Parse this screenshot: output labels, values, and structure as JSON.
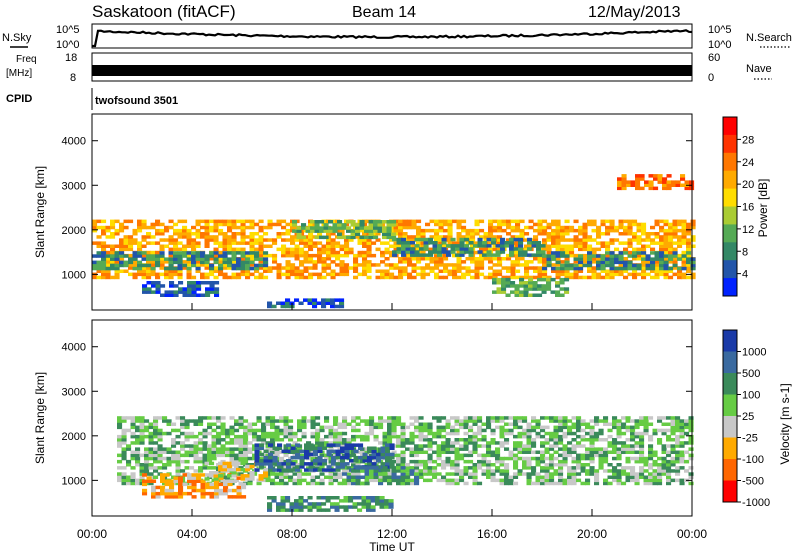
{
  "header": {
    "station": "Saskatoon (fitACF)",
    "beam": "Beam 14",
    "date": "12/May/2013"
  },
  "noise_panel": {
    "left_label": "N.Sky",
    "left_ticks": [
      "10^5",
      "10^0"
    ],
    "right_ticks": [
      "10^5",
      "10^0"
    ],
    "right_label": "N.Search"
  },
  "freq_panel": {
    "left_label_1": "Freq",
    "left_label_2": "[MHz]",
    "left_ticks": [
      "18",
      "8"
    ],
    "right_ticks": [
      "60",
      "0"
    ],
    "right_label": "Nave"
  },
  "cpid_panel": {
    "label": "CPID",
    "program": "twofsound 3501"
  },
  "power_colorbar": {
    "label": "Power [dB]",
    "ticks": [
      "28",
      "24",
      "20",
      "16",
      "12",
      "8",
      "4"
    ],
    "colors": [
      "#ff0000",
      "#ff3300",
      "#ff7700",
      "#ffaa00",
      "#ffdd00",
      "#aacc33",
      "#55aa55",
      "#338866",
      "#2255aa",
      "#0022ff"
    ]
  },
  "velocity_colorbar": {
    "label": "Velocity [m s-1]",
    "ticks": [
      "1000",
      "500",
      "100",
      "25",
      "-25",
      "-100",
      "-500",
      "-1000"
    ],
    "colors": [
      "#1a3aa8",
      "#3a6aa0",
      "#3a8a5a",
      "#66cc44",
      "#c8c8c8",
      "#ffaa00",
      "#ff6600",
      "#ff0000"
    ]
  },
  "chart_data": [
    {
      "type": "heatmap",
      "name": "power",
      "ylabel": "Slant Range [km]",
      "xlabel": "",
      "yticks": [
        "4000",
        "3000",
        "2000",
        "1000"
      ],
      "ylim": [
        200,
        4600
      ],
      "xlim": [
        0,
        24
      ],
      "colorbar": "Power [dB]",
      "bands": [
        {
          "t0": 0.0,
          "t1": 24.0,
          "r0": 900,
          "r1": 2200,
          "level": 6
        },
        {
          "t0": 0.0,
          "t1": 7.0,
          "r0": 1100,
          "r1": 1500,
          "level": 2
        },
        {
          "t0": 2.0,
          "t1": 5.0,
          "r0": 500,
          "r1": 800,
          "level": 1
        },
        {
          "t0": 7.0,
          "t1": 10.0,
          "r0": 250,
          "r1": 400,
          "level": 1
        },
        {
          "t0": 8.0,
          "t1": 12.0,
          "r0": 1800,
          "r1": 2200,
          "level": 3
        },
        {
          "t0": 12.0,
          "t1": 18.0,
          "r0": 1400,
          "r1": 1800,
          "level": 2
        },
        {
          "t0": 18.0,
          "t1": 24.0,
          "r0": 1100,
          "r1": 1500,
          "level": 2
        },
        {
          "t0": 16.0,
          "t1": 19.0,
          "r0": 500,
          "r1": 900,
          "level": 3
        },
        {
          "t0": 21.0,
          "t1": 24.0,
          "r0": 2900,
          "r1": 3200,
          "level": 7
        }
      ]
    },
    {
      "type": "heatmap",
      "name": "velocity",
      "ylabel": "Slant Range [km]",
      "xlabel": "Time UT",
      "yticks": [
        "4000",
        "3000",
        "2000",
        "1000"
      ],
      "ylim": [
        200,
        4600
      ],
      "xlim": [
        0,
        24
      ],
      "colorbar": "Velocity [m s-1]",
      "bands": [
        {
          "t0": 1.0,
          "t1": 24.0,
          "r0": 900,
          "r1": 2400,
          "level": 4
        },
        {
          "t0": 2.0,
          "t1": 6.0,
          "r0": 600,
          "r1": 1100,
          "level": 2
        },
        {
          "t0": 4.5,
          "t1": 7.0,
          "r0": 1000,
          "r1": 1400,
          "level": 3
        },
        {
          "t0": 6.5,
          "t1": 12.0,
          "r0": 1200,
          "r1": 1800,
          "level": 6
        },
        {
          "t0": 10.0,
          "t1": 13.0,
          "r0": 900,
          "r1": 1300,
          "level": 5
        },
        {
          "t0": 7.0,
          "t1": 12.0,
          "r0": 300,
          "r1": 600,
          "level": 5
        }
      ]
    }
  ],
  "x_axis": {
    "ticks": [
      "00:00",
      "04:00",
      "08:00",
      "12:00",
      "16:00",
      "20:00",
      "00:00"
    ],
    "label": "Time UT"
  }
}
